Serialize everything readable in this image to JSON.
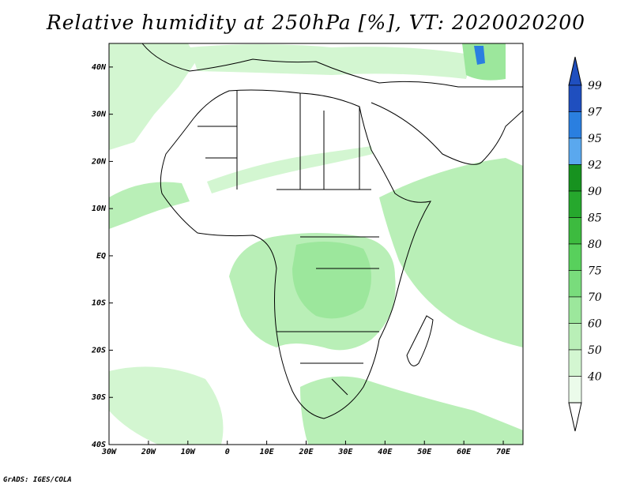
{
  "title": "Relative humidity at 250hPa [%], VT: 2020020200",
  "credit": "GrADS: IGES/COLA",
  "map": {
    "lon_range": [
      -30,
      75
    ],
    "lat_range": [
      -40,
      45
    ],
    "lat_ticks": [
      "40N",
      "30N",
      "20N",
      "10N",
      "EQ",
      "10S",
      "20S",
      "30S",
      "40S"
    ],
    "lat_tick_values": [
      40,
      30,
      20,
      10,
      0,
      -10,
      -20,
      -30,
      -40
    ],
    "lon_ticks": [
      "30W",
      "20W",
      "10W",
      "0",
      "10E",
      "20E",
      "30E",
      "40E",
      "50E",
      "60E",
      "70E"
    ],
    "lon_tick_values": [
      -30,
      -20,
      -10,
      0,
      10,
      20,
      30,
      40,
      50,
      60,
      70
    ]
  },
  "colorbar": {
    "labels": [
      "99",
      "97",
      "95",
      "92",
      "90",
      "85",
      "80",
      "75",
      "70",
      "60",
      "50",
      "40"
    ],
    "colors": [
      "#1f4fbf",
      "#2a7fe0",
      "#5aa8ee",
      "#17921f",
      "#26a82d",
      "#3dbb3f",
      "#58d05c",
      "#79dc7c",
      "#9ce79c",
      "#b9efb7",
      "#d3f6d1",
      "#ebfbea"
    ],
    "top_arrow_color": "#1f4fbf",
    "bottom_arrow_color": "#ffffff"
  },
  "field_colors": {
    "light": "#d3f6d1",
    "medium": "#b9efb7",
    "darker": "#9ce79c",
    "deep": "#79dc7c",
    "blue": "#2a7fe0"
  }
}
